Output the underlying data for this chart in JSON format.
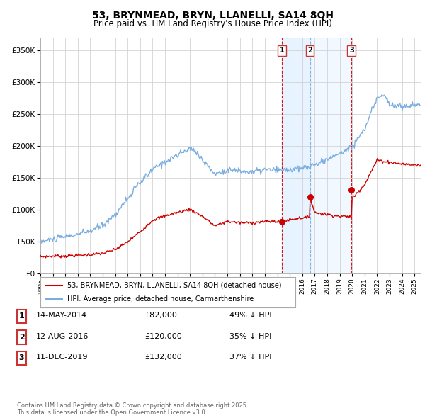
{
  "title1": "53, BRYNMEAD, BRYN, LLANELLI, SA14 8QH",
  "title2": "Price paid vs. HM Land Registry's House Price Index (HPI)",
  "legend_red": "53, BRYNMEAD, BRYN, LLANELLI, SA14 8QH (detached house)",
  "legend_blue": "HPI: Average price, detached house, Carmarthenshire",
  "transactions": [
    {
      "label": "1",
      "date": "14-MAY-2014",
      "price": "£82,000",
      "pct": "49% ↓ HPI",
      "year": 2014.37,
      "price_val": 82000
    },
    {
      "label": "2",
      "date": "12-AUG-2016",
      "price": "£120,000",
      "pct": "35% ↓ HPI",
      "year": 2016.62,
      "price_val": 120000
    },
    {
      "label": "3",
      "date": "11-DEC-2019",
      "price": "£132,000",
      "pct": "37% ↓ HPI",
      "year": 2019.95,
      "price_val": 132000
    }
  ],
  "footer": "Contains HM Land Registry data © Crown copyright and database right 2025.\nThis data is licensed under the Open Government Licence v3.0.",
  "red_color": "#cc0000",
  "blue_color": "#7aade0",
  "vline1_color": "#cc0000",
  "vline2_color": "#7aade0",
  "vline3_color": "#cc0000",
  "vline_shade_color": "#ddeeff",
  "ylim": [
    0,
    370000
  ],
  "xlim_start": 1995,
  "xlim_end": 2025.5,
  "bg_color": "#ffffff",
  "grid_color": "#cccccc"
}
